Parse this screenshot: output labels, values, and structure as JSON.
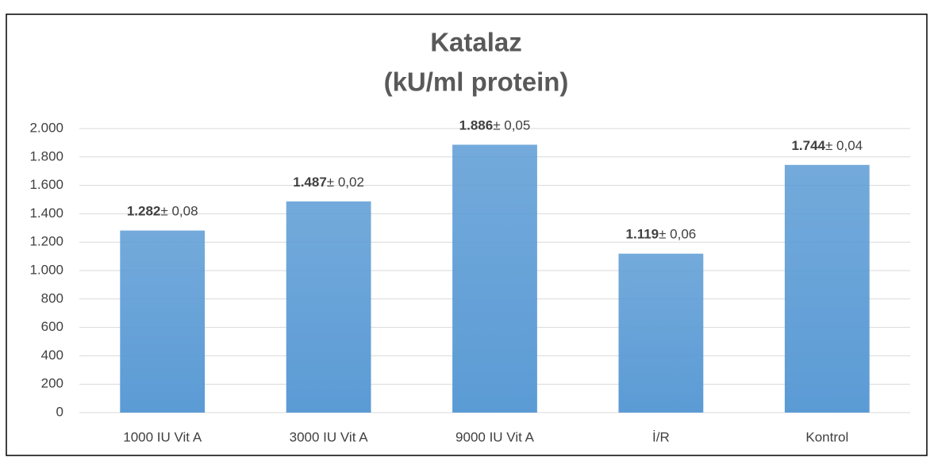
{
  "chart_data": {
    "type": "bar",
    "title": "Katalaz",
    "subtitle": "(kU/ml protein)",
    "categories": [
      "1000 IU Vit A",
      "3000 IU Vit A",
      "9000 IU Vit A",
      "İ/R",
      "Kontrol"
    ],
    "values": [
      1282,
      1487,
      1886,
      1119,
      1744
    ],
    "value_labels": [
      "1.282",
      "1.487",
      "1.886",
      "1.119",
      "1.744"
    ],
    "error_labels": [
      "± 0,08",
      "± 0,02",
      "± 0,05",
      "± 0,06",
      "± 0,04"
    ],
    "color": "#5b9bd5",
    "ylim": [
      0,
      2000
    ],
    "yticks": [
      0,
      200,
      400,
      600,
      800,
      {
        "value": 1000,
        "label": "1.000"
      },
      {
        "value": 1200,
        "label": "1.200"
      },
      {
        "value": 1400,
        "label": "1.400"
      },
      {
        "value": 1600,
        "label": "1.600"
      },
      {
        "value": 1800,
        "label": "1.800"
      },
      {
        "value": 2000,
        "label": "2.000"
      }
    ],
    "grid": true
  }
}
